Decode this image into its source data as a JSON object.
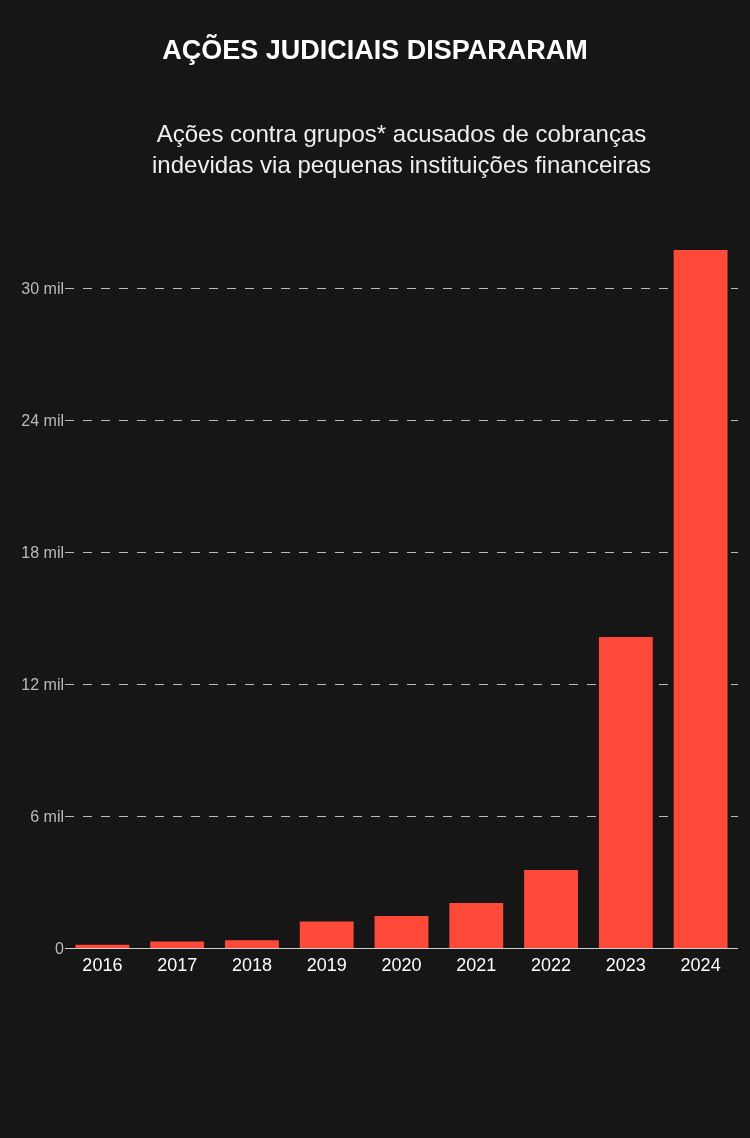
{
  "chart_data": {
    "type": "bar",
    "title": "AÇÕES JUDICIAIS DISPARARAM",
    "subtitle": "Ações contra grupos* acusados de cobranças\nindevidas via pequenas instituições financeiras",
    "categories": [
      "2016",
      "2017",
      "2018",
      "2019",
      "2020",
      "2021",
      "2022",
      "2023",
      "2024"
    ],
    "values": [
      0.15,
      0.3,
      0.35,
      1.2,
      1.45,
      2.05,
      3.55,
      14.15,
      31.75
    ],
    "color": "#ff4a3a",
    "ylim": [
      0,
      31.75
    ],
    "yticks": [
      0,
      {
        "value": 6,
        "label": "6 mil"
      },
      {
        "value": 12,
        "label": "12 mil"
      },
      {
        "value": 18,
        "label": "18 mil"
      },
      {
        "value": 24,
        "label": "24 mil"
      },
      {
        "value": 30,
        "label": "30 mil"
      }
    ],
    "grid": "y",
    "legend": false
  }
}
